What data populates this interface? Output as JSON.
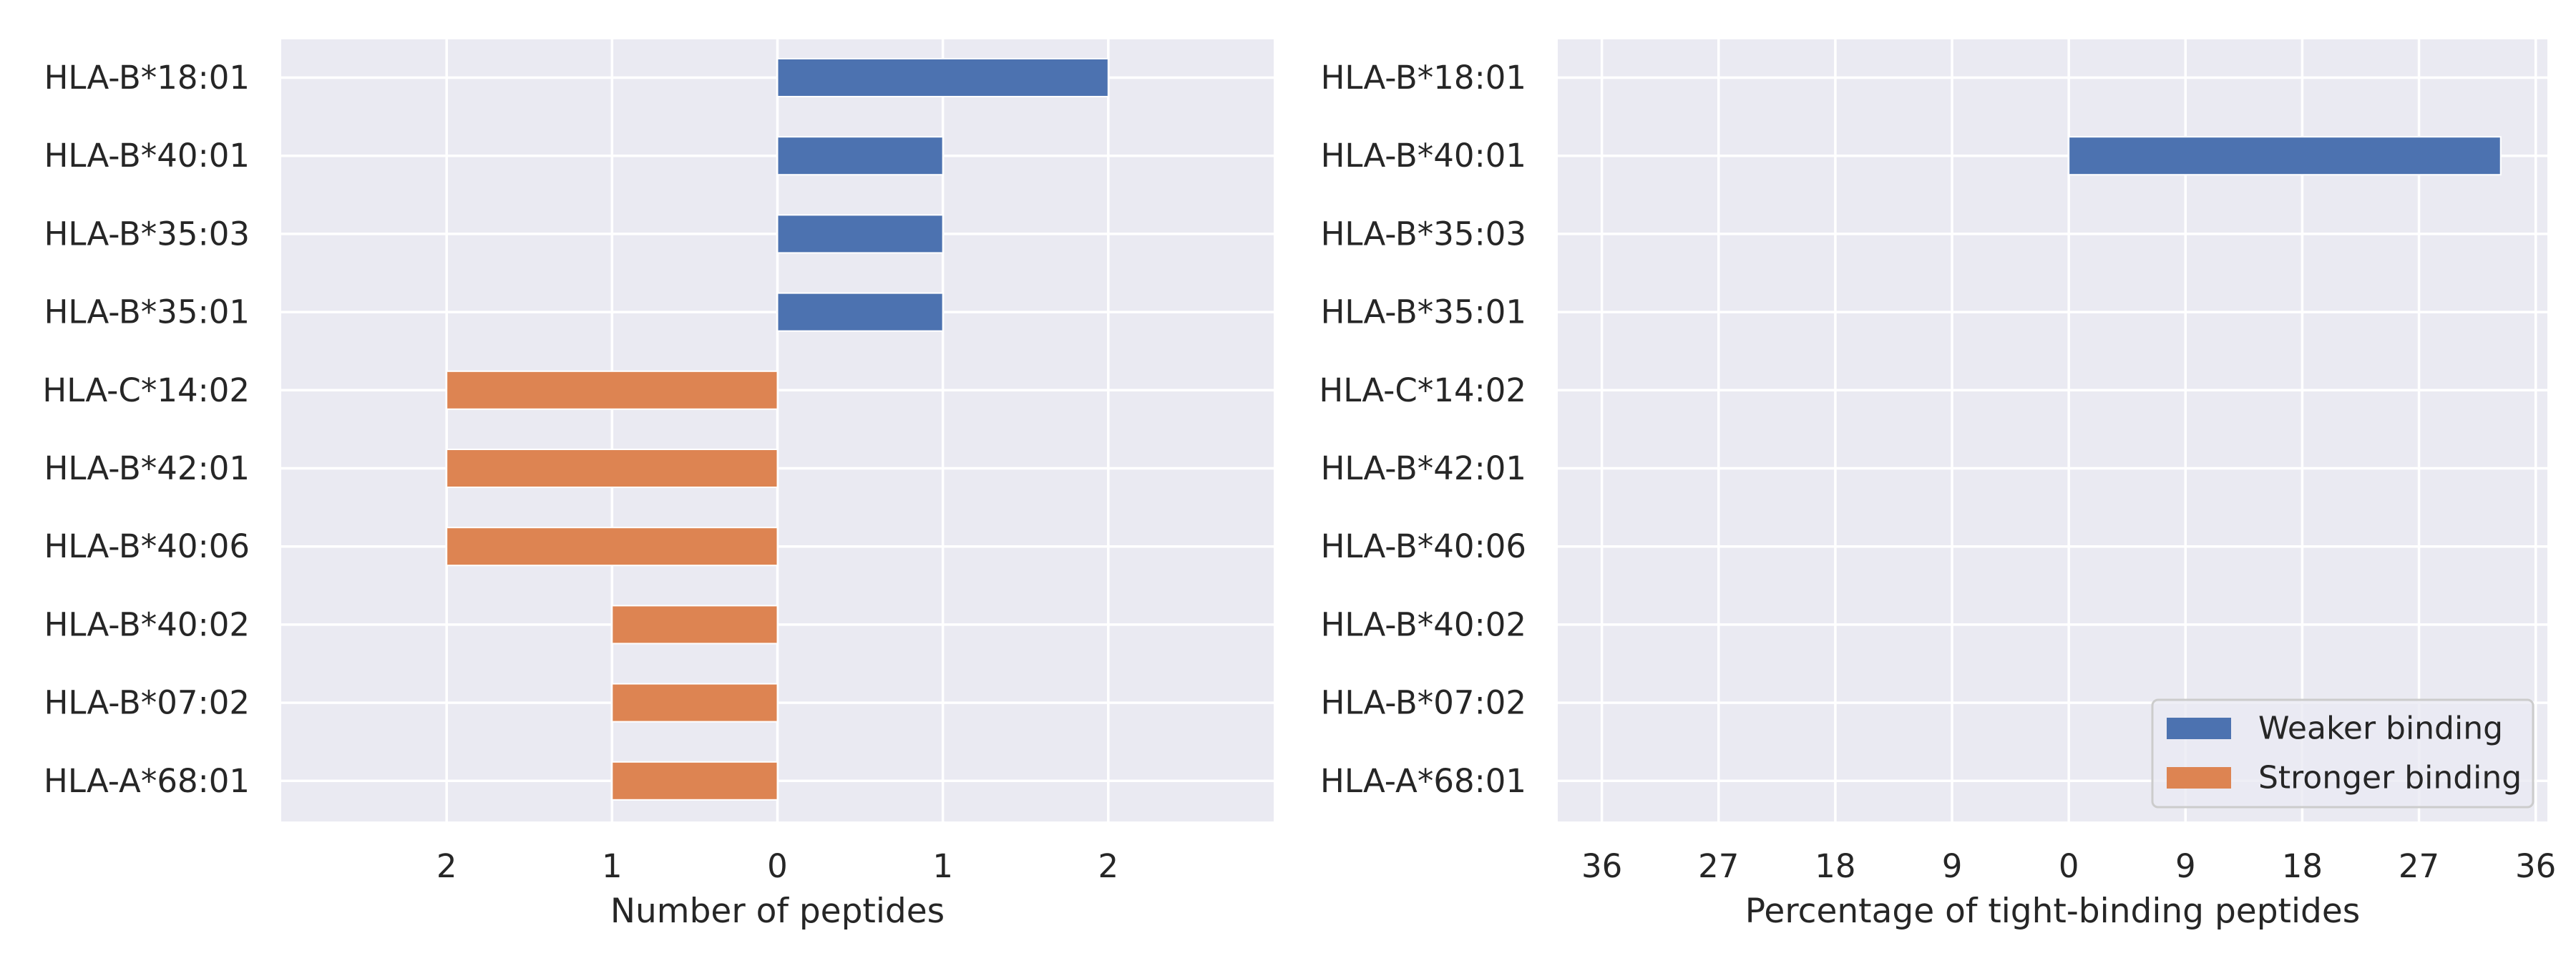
{
  "chart_data": [
    {
      "type": "bar",
      "orientation": "horizontal",
      "diverging": true,
      "categories": [
        "HLA-B*18:01",
        "HLA-B*40:01",
        "HLA-B*35:03",
        "HLA-B*35:01",
        "HLA-C*14:02",
        "HLA-B*42:01",
        "HLA-B*40:06",
        "HLA-B*40:02",
        "HLA-B*07:02",
        "HLA-A*68:01"
      ],
      "series": [
        {
          "name": "Weaker binding",
          "color": "#4c72b0",
          "direction": "right",
          "values": [
            2,
            1,
            1,
            1,
            0,
            0,
            0,
            0,
            0,
            0
          ]
        },
        {
          "name": "Stronger binding",
          "color": "#dd8452",
          "direction": "left",
          "values": [
            0,
            0,
            0,
            0,
            2,
            2,
            2,
            1,
            1,
            1
          ]
        }
      ],
      "xlabel": "Number of peptides",
      "ylabel": "",
      "xlim": [
        -3,
        3
      ],
      "xticks": [
        -2,
        -1,
        0,
        1,
        2
      ],
      "xtick_labels": [
        "2",
        "1",
        "0",
        "1",
        "2"
      ],
      "grid": true,
      "background": "#eaeaf2"
    },
    {
      "type": "bar",
      "orientation": "horizontal",
      "diverging": true,
      "categories": [
        "HLA-B*18:01",
        "HLA-B*40:01",
        "HLA-B*35:03",
        "HLA-B*35:01",
        "HLA-C*14:02",
        "HLA-B*42:01",
        "HLA-B*40:06",
        "HLA-B*40:02",
        "HLA-B*07:02",
        "HLA-A*68:01"
      ],
      "series": [
        {
          "name": "Weaker binding",
          "color": "#4c72b0",
          "direction": "right",
          "values": [
            0,
            33.3,
            0,
            0,
            0,
            0,
            0,
            0,
            0,
            0
          ]
        },
        {
          "name": "Stronger binding",
          "color": "#dd8452",
          "direction": "left",
          "values": [
            0,
            0,
            0,
            0,
            0,
            0,
            0,
            0,
            0,
            0
          ]
        }
      ],
      "xlabel": "Percentage of tight-binding peptides",
      "ylabel": "",
      "xlim": [
        -39.4,
        36.9
      ],
      "xticks": [
        -36,
        -27,
        -18,
        -9,
        0,
        9,
        18,
        27,
        36
      ],
      "xtick_labels": [
        "36",
        "27",
        "18",
        "9",
        "0",
        "9",
        "18",
        "27",
        "36"
      ],
      "grid": true,
      "background": "#eaeaf2",
      "legend": {
        "position": "bottom-right",
        "entries": [
          {
            "label": "Weaker binding",
            "color": "#4c72b0"
          },
          {
            "label": "Stronger binding",
            "color": "#dd8452"
          }
        ]
      }
    }
  ]
}
